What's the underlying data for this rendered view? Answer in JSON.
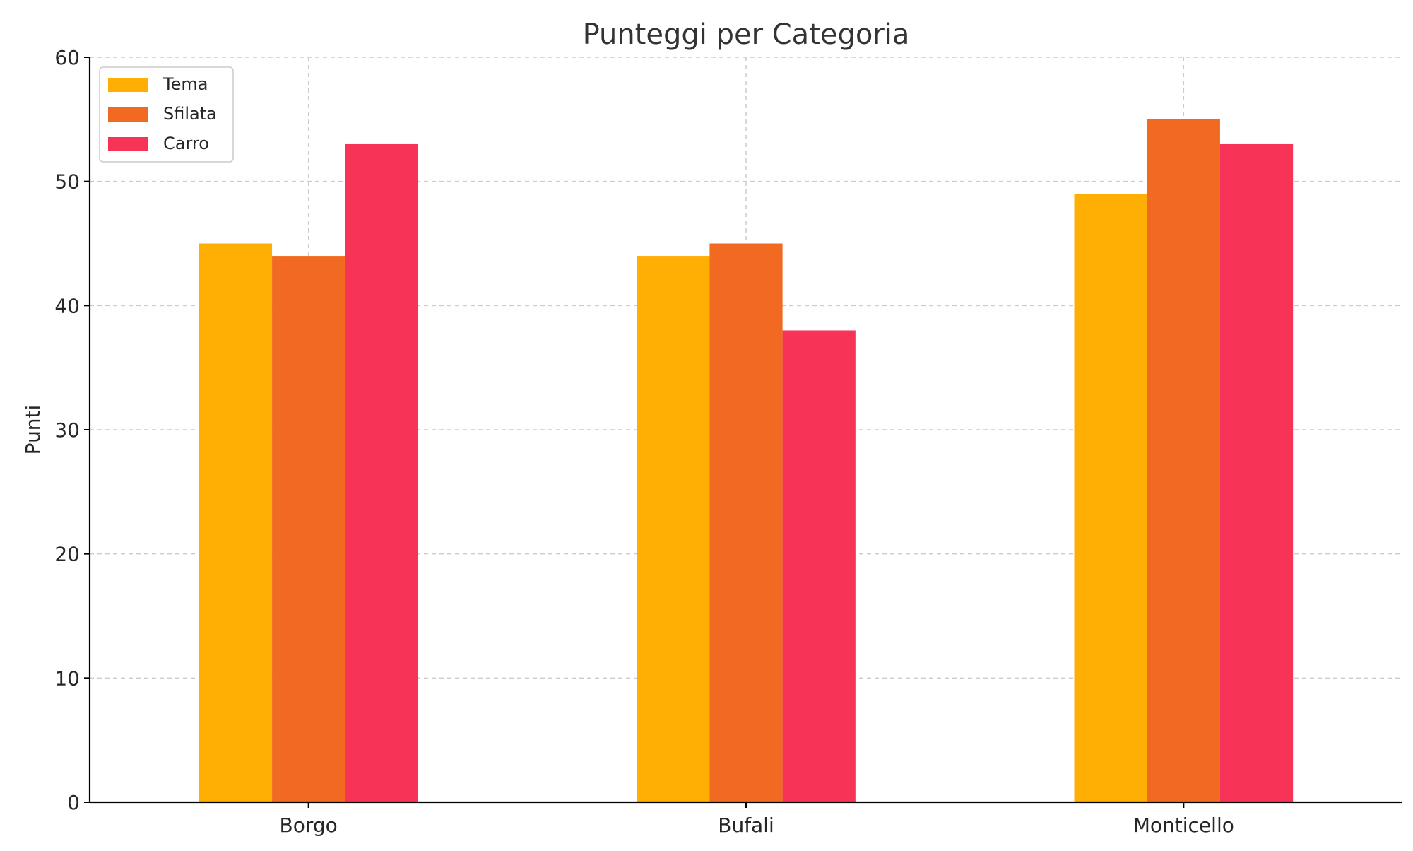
{
  "chart_data": {
    "type": "bar",
    "title": "Punteggi per Categoria",
    "xlabel": "",
    "ylabel": "Punti",
    "categories": [
      "Borgo",
      "Bufali",
      "Monticello"
    ],
    "series": [
      {
        "name": "Tema",
        "color": "#FFAE03",
        "values": [
          45,
          44,
          49
        ]
      },
      {
        "name": "Sfilata",
        "color": "#F26A21",
        "values": [
          44,
          45,
          55
        ]
      },
      {
        "name": "Carro",
        "color": "#F73357",
        "values": [
          53,
          38,
          53
        ]
      }
    ],
    "ylim": [
      0,
      60
    ],
    "yticks": [
      0,
      10,
      20,
      30,
      40,
      50,
      60
    ],
    "grid": true,
    "legend_position": "top-left"
  }
}
